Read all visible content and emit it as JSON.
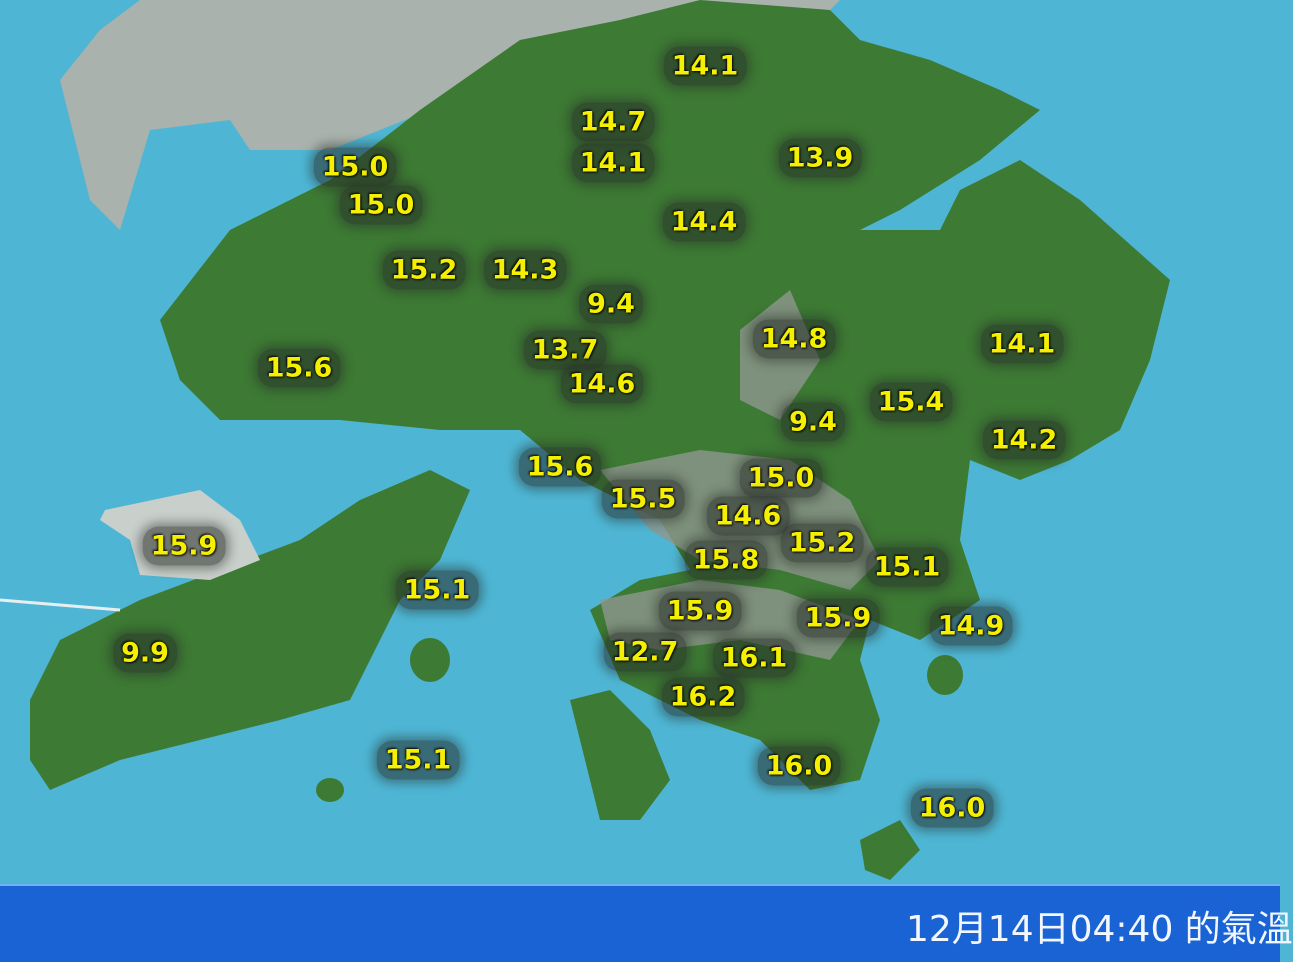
{
  "colors": {
    "sea": "#4eb6d4",
    "land": "#3f7a35",
    "urban": "#9aa59a",
    "label_text": "#f4f000",
    "bar": "#1a63d4"
  },
  "stations": [
    "14.1",
    "14.7",
    "14.1",
    "13.9",
    "15.0",
    "15.0",
    "14.4",
    "15.2",
    "14.3",
    "9.4",
    "14.8",
    "14.1",
    "13.7",
    "15.6",
    "14.6",
    "15.4",
    "9.4",
    "14.2",
    "15.6",
    "15.0",
    "15.5",
    "14.6",
    "15.9",
    "15.2",
    "15.8",
    "15.1",
    "15.1",
    "15.9",
    "15.9",
    "14.9",
    "9.9",
    "12.7",
    "16.1",
    "16.2",
    "15.1",
    "16.0",
    "16.0"
  ],
  "footer": {
    "text": "12月14日04:40 的氣溫"
  }
}
